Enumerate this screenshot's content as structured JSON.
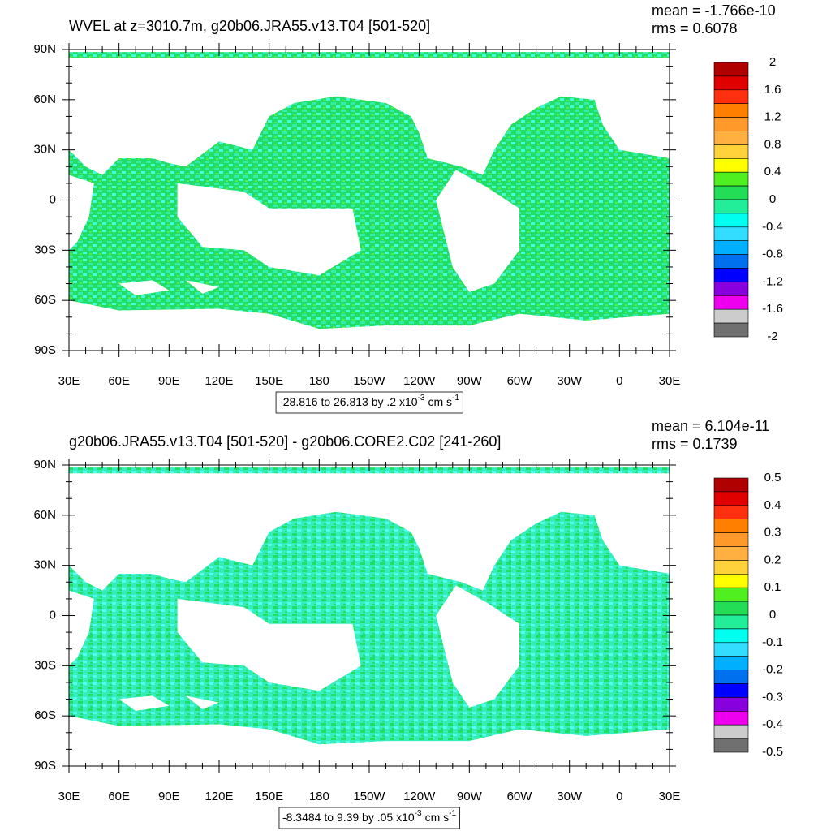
{
  "panels": [
    {
      "title": "WVEL at z=3010.7m, g20b06.JRA55.v13.T04 [501-520]",
      "mean": "mean = -1.766e-10",
      "rms": "rms = 0.6078",
      "lat_ticks": [
        {
          "value": 90,
          "label": "90N"
        },
        {
          "value": 60,
          "label": "60N"
        },
        {
          "value": 30,
          "label": "30N"
        },
        0,
        {
          "value": -30,
          "label": "30S"
        },
        {
          "value": -60,
          "label": "60S"
        },
        {
          "value": -90,
          "label": "90S"
        }
      ],
      "lon_ticks": [
        {
          "value": 30,
          "label": "30E"
        },
        {
          "value": 60,
          "label": "60E"
        },
        {
          "value": 90,
          "label": "90E"
        },
        {
          "value": 120,
          "label": "120E"
        },
        {
          "value": 150,
          "label": "150E"
        },
        180,
        {
          "value": 210,
          "label": "150W"
        },
        {
          "value": 240,
          "label": "120W"
        },
        {
          "value": 270,
          "label": "90W"
        },
        {
          "value": 300,
          "label": "60W"
        },
        {
          "value": 330,
          "label": "30W"
        },
        {
          "value": 360,
          "label": "0"
        },
        {
          "value": 390,
          "label": "30E"
        }
      ],
      "colorbar": {
        "levels": [
          2,
          1.6,
          1.2,
          0.8,
          0.4,
          0,
          -0.4,
          -0.8,
          -1.2,
          -1.6,
          -2
        ],
        "colors": [
          "#b00000",
          "#e00000",
          "#ff3010",
          "#ff7f00",
          "#ff9a2a",
          "#ffb040",
          "#ffd23c",
          "#ffff00",
          "#50f020",
          "#22dd55",
          "#22ee99",
          "#00ffee",
          "#33ddff",
          "#00b0ff",
          "#0070ee",
          "#0000ff",
          "#8800dd",
          "#ee00ee",
          "#cccccc",
          "#707070"
        ]
      },
      "caption": {
        "text": "-28.816 to 26.813 by .2 x10",
        "exp": "-3",
        "unit": "cm s",
        "unit_exp": "-1"
      }
    },
    {
      "title": "g20b06.JRA55.v13.T04 [501-520] - g20b06.CORE2.C02 [241-260]",
      "mean": "mean = 6.104e-11",
      "rms": "rms = 0.1739",
      "lat_ticks": [
        {
          "value": 90,
          "label": "90N"
        },
        {
          "value": 60,
          "label": "60N"
        },
        {
          "value": 30,
          "label": "30N"
        },
        0,
        {
          "value": -30,
          "label": "30S"
        },
        {
          "value": -60,
          "label": "60S"
        },
        {
          "value": -90,
          "label": "90S"
        }
      ],
      "lon_ticks": [
        {
          "value": 30,
          "label": "30E"
        },
        {
          "value": 60,
          "label": "60E"
        },
        {
          "value": 90,
          "label": "90E"
        },
        {
          "value": 120,
          "label": "120E"
        },
        {
          "value": 150,
          "label": "150E"
        },
        180,
        {
          "value": 210,
          "label": "150W"
        },
        {
          "value": 240,
          "label": "120W"
        },
        {
          "value": 270,
          "label": "90W"
        },
        {
          "value": 300,
          "label": "60W"
        },
        {
          "value": 330,
          "label": "30W"
        },
        {
          "value": 360,
          "label": "0"
        },
        {
          "value": 390,
          "label": "30E"
        }
      ],
      "colorbar": {
        "levels": [
          0.5,
          0.4,
          0.3,
          0.2,
          0.1,
          0,
          -0.1,
          -0.2,
          -0.3,
          -0.4,
          -0.5
        ],
        "colors": [
          "#b00000",
          "#e00000",
          "#ff3010",
          "#ff7f00",
          "#ff9a2a",
          "#ffb040",
          "#ffd23c",
          "#ffff00",
          "#50f020",
          "#22dd55",
          "#22ee99",
          "#00ffee",
          "#33ddff",
          "#00b0ff",
          "#0070ee",
          "#0000ff",
          "#8800dd",
          "#ee00ee",
          "#cccccc",
          "#707070"
        ]
      },
      "caption": {
        "text": "-8.3484 to 9.39 by .05 x10",
        "exp": "-3",
        "unit": "cm s",
        "unit_exp": "-1"
      }
    }
  ]
}
